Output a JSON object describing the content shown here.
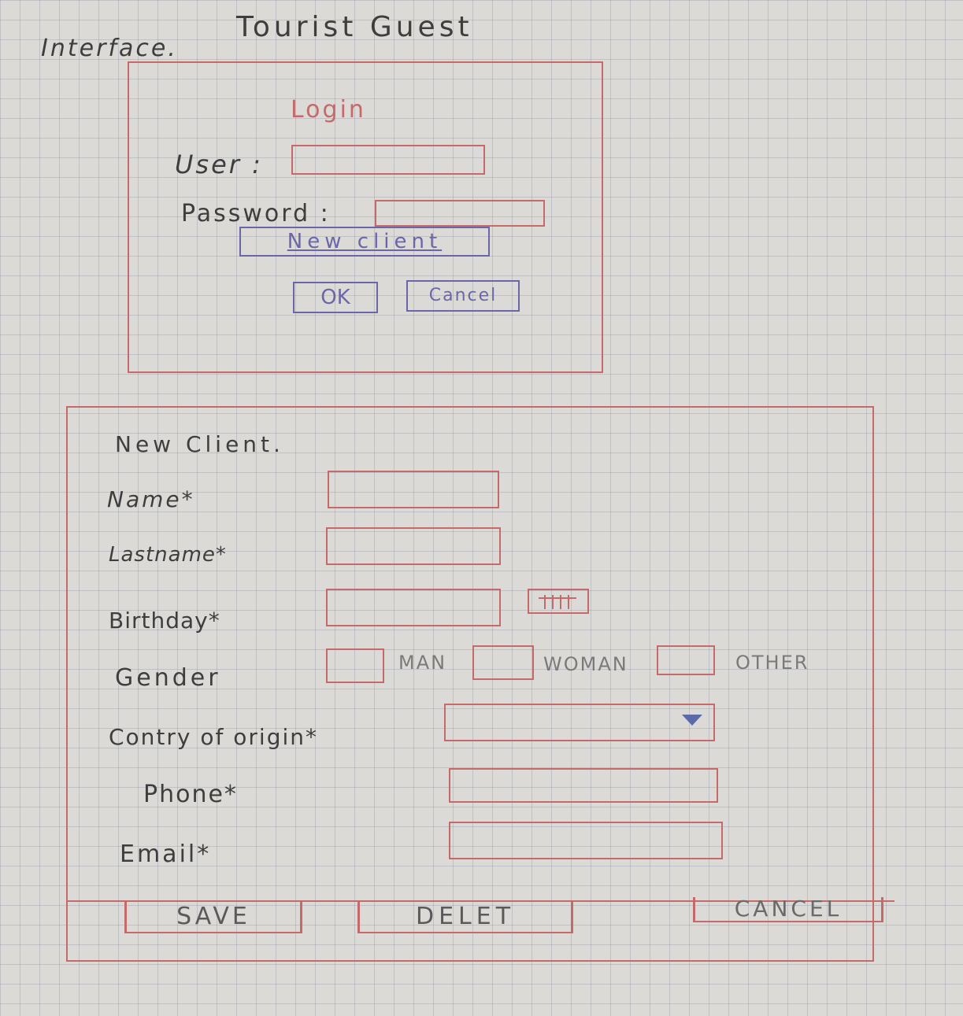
{
  "header": {
    "interface_label": "Interface.",
    "app_title": "Tourist Guest"
  },
  "login": {
    "title": "Login",
    "user_label": "User :",
    "password_label": "Password :",
    "new_client_link": "New client",
    "ok_button": "OK",
    "cancel_button": "Cancel"
  },
  "new_client": {
    "title": "New Client.",
    "name_label": "Name*",
    "lastname_label": "Lastname*",
    "birthday_label": "Birthday*",
    "gender_label": "Gender",
    "gender_options": [
      "MAN",
      "WOMAN",
      "OTHER"
    ],
    "country_label": "Contry of origin*",
    "phone_label": "Phone*",
    "email_label": "Email*",
    "save_button": "SAVE",
    "delete_button": "DELET",
    "cancel_button": "CANCEL"
  },
  "colors": {
    "paper": "#dcdad6",
    "red_ink": "#c46a6a",
    "blue_ink": "#6b66a8",
    "pencil": "#3e3e3e"
  }
}
